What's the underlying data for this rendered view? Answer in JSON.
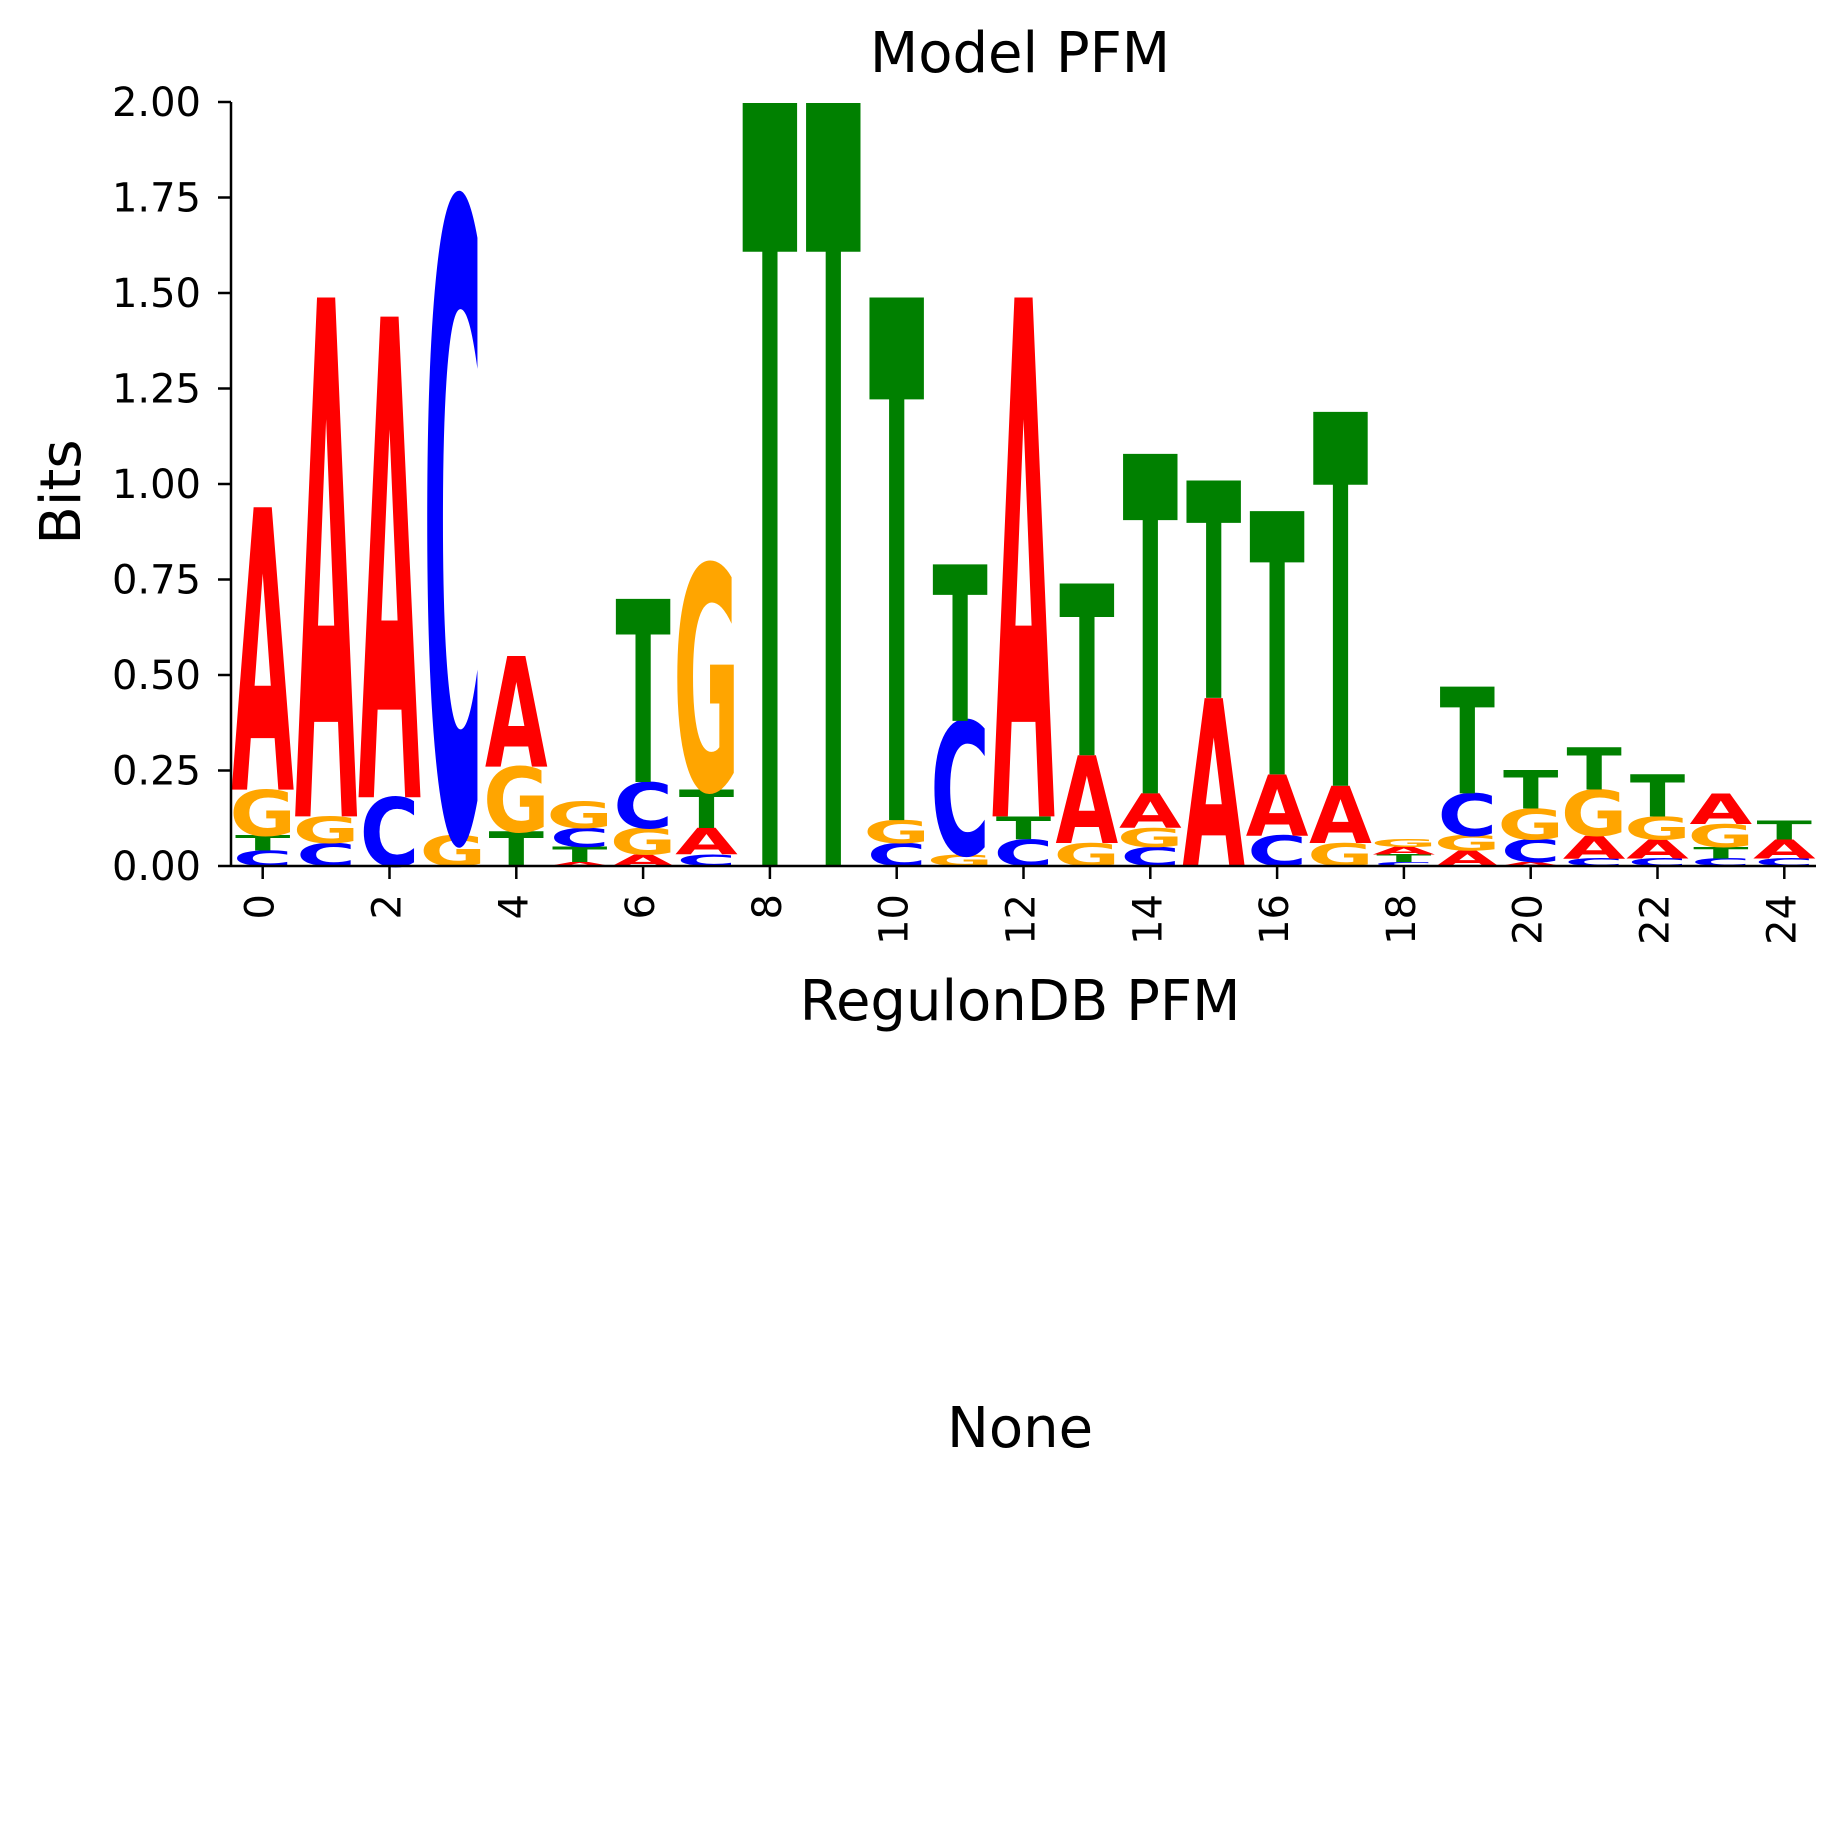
{
  "chart_data": {
    "type": "sequence-logo",
    "title": "Model PFM",
    "xlabel": "RegulonDB PFM",
    "ylabel": "Bits",
    "ylim": [
      0,
      2.0
    ],
    "xlim": [
      -0.5,
      24.5
    ],
    "yticks": [
      "0.00",
      "0.25",
      "0.50",
      "0.75",
      "1.00",
      "1.25",
      "1.50",
      "1.75",
      "2.00"
    ],
    "xticks": [
      "0",
      "2",
      "4",
      "6",
      "8",
      "10",
      "12",
      "14",
      "16",
      "18",
      "20",
      "22",
      "24"
    ],
    "colors": {
      "A": "#ff0000",
      "C": "#0000ff",
      "G": "#ffa500",
      "T": "#008000"
    },
    "positions": [
      {
        "pos": 0,
        "stack": [
          [
            "C",
            0.04
          ],
          [
            "T",
            0.04
          ],
          [
            "G",
            0.12
          ],
          [
            "A",
            0.74
          ]
        ]
      },
      {
        "pos": 1,
        "stack": [
          [
            "C",
            0.06
          ],
          [
            "G",
            0.07
          ],
          [
            "A",
            1.36
          ]
        ]
      },
      {
        "pos": 2,
        "stack": [
          [
            "C",
            0.18
          ],
          [
            "A",
            1.26
          ]
        ]
      },
      {
        "pos": 3,
        "stack": [
          [
            "G",
            0.08
          ],
          [
            "C",
            1.66
          ]
        ]
      },
      {
        "pos": 4,
        "stack": [
          [
            "T",
            0.09
          ],
          [
            "G",
            0.17
          ],
          [
            "A",
            0.29
          ]
        ]
      },
      {
        "pos": 5,
        "stack": [
          [
            "A",
            0.01
          ],
          [
            "T",
            0.04
          ],
          [
            "C",
            0.05
          ],
          [
            "G",
            0.07
          ]
        ]
      },
      {
        "pos": 6,
        "stack": [
          [
            "A",
            0.03
          ],
          [
            "G",
            0.07
          ],
          [
            "C",
            0.12
          ],
          [
            "T",
            0.48
          ]
        ]
      },
      {
        "pos": 7,
        "stack": [
          [
            "C",
            0.03
          ],
          [
            "A",
            0.07
          ],
          [
            "T",
            0.1
          ],
          [
            "G",
            0.59
          ]
        ]
      },
      {
        "pos": 8,
        "stack": [
          [
            "T",
            2.0
          ]
        ]
      },
      {
        "pos": 9,
        "stack": [
          [
            "T",
            2.0
          ]
        ]
      },
      {
        "pos": 10,
        "stack": [
          [
            "C",
            0.06
          ],
          [
            "G",
            0.06
          ],
          [
            "T",
            1.37
          ]
        ]
      },
      {
        "pos": 11,
        "stack": [
          [
            "G",
            0.03
          ],
          [
            "C",
            0.35
          ],
          [
            "T",
            0.41
          ]
        ]
      },
      {
        "pos": 12,
        "stack": [
          [
            "C",
            0.07
          ],
          [
            "T",
            0.06
          ],
          [
            "A",
            1.36
          ]
        ]
      },
      {
        "pos": 13,
        "stack": [
          [
            "G",
            0.06
          ],
          [
            "A",
            0.23
          ],
          [
            "T",
            0.45
          ]
        ]
      },
      {
        "pos": 14,
        "stack": [
          [
            "C",
            0.05
          ],
          [
            "G",
            0.05
          ],
          [
            "A",
            0.09
          ],
          [
            "T",
            0.89
          ]
        ]
      },
      {
        "pos": 15,
        "stack": [
          [
            "A",
            0.44
          ],
          [
            "T",
            0.57
          ]
        ]
      },
      {
        "pos": 16,
        "stack": [
          [
            "C",
            0.08
          ],
          [
            "A",
            0.16
          ],
          [
            "T",
            0.69
          ]
        ]
      },
      {
        "pos": 17,
        "stack": [
          [
            "G",
            0.06
          ],
          [
            "A",
            0.15
          ],
          [
            "T",
            0.98
          ]
        ]
      },
      {
        "pos": 18,
        "stack": [
          [
            "C",
            0.01
          ],
          [
            "T",
            0.02
          ],
          [
            "A",
            0.02
          ],
          [
            "G",
            0.02
          ]
        ]
      },
      {
        "pos": 19,
        "stack": [
          [
            "A",
            0.04
          ],
          [
            "G",
            0.04
          ],
          [
            "C",
            0.11
          ],
          [
            "T",
            0.28
          ]
        ]
      },
      {
        "pos": 20,
        "stack": [
          [
            "A",
            0.01
          ],
          [
            "C",
            0.06
          ],
          [
            "G",
            0.08
          ],
          [
            "T",
            0.1
          ]
        ]
      },
      {
        "pos": 21,
        "stack": [
          [
            "C",
            0.02
          ],
          [
            "A",
            0.06
          ],
          [
            "G",
            0.12
          ],
          [
            "T",
            0.11
          ]
        ]
      },
      {
        "pos": 22,
        "stack": [
          [
            "C",
            0.02
          ],
          [
            "A",
            0.05
          ],
          [
            "G",
            0.06
          ],
          [
            "T",
            0.11
          ]
        ]
      },
      {
        "pos": 23,
        "stack": [
          [
            "C",
            0.02
          ],
          [
            "T",
            0.03
          ],
          [
            "G",
            0.06
          ],
          [
            "A",
            0.08
          ]
        ]
      },
      {
        "pos": 24,
        "stack": [
          [
            "C",
            0.02
          ],
          [
            "A",
            0.05
          ],
          [
            "T",
            0.05
          ]
        ]
      }
    ]
  },
  "secondary_panel": {
    "text": "None"
  }
}
